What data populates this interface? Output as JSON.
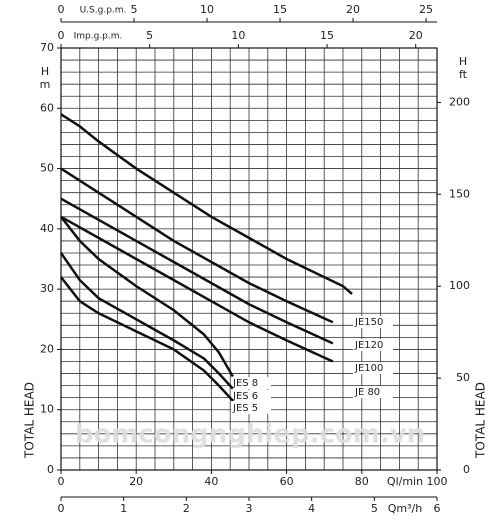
{
  "chart_data": {
    "type": "line",
    "xlim": [
      0,
      100
    ],
    "xticks": [
      0,
      20,
      40,
      60,
      80,
      100
    ],
    "x_label": "Ql/min",
    "x2": {
      "label": "Qm³/h",
      "lim": [
        0,
        6
      ],
      "ticks": [
        0,
        1,
        2,
        3,
        4,
        5,
        6
      ]
    },
    "x_top": {
      "label": "U.S.g.p.m.",
      "lim": [
        0,
        25.75
      ],
      "ticks": [
        0,
        5,
        10,
        15,
        20,
        25
      ]
    },
    "x_top2": {
      "label": "Imp.g.p.m.",
      "lim": [
        0,
        21.2
      ],
      "ticks": [
        0,
        5,
        10,
        15,
        20
      ]
    },
    "ylim": [
      0,
      70
    ],
    "yticks": [
      0,
      10,
      20,
      30,
      40,
      50,
      60,
      70
    ],
    "y_symbol": "H",
    "y_unit": "m",
    "y2lim": [
      0,
      229.6
    ],
    "y2ticks": [
      0,
      50,
      100,
      150,
      200
    ],
    "y2_symbol": "H",
    "y2_unit": "ft",
    "y_title": "TOTAL HEAD",
    "grid": true,
    "minor_grid": {
      "x_step": 5,
      "y_step": 2
    },
    "watermark": "bomcongnghiep.com.vn",
    "series": [
      {
        "name": "JE150",
        "color": "#111111",
        "x": [
          0,
          5,
          10,
          20,
          30,
          40,
          50,
          60,
          70,
          75,
          77.4
        ],
        "values": [
          59,
          57,
          54.5,
          50,
          46,
          42,
          38.5,
          35,
          32,
          30.5,
          29.2
        ]
      },
      {
        "name": "JE120",
        "color": "#111111",
        "x": [
          0,
          10,
          20,
          30,
          40,
          50,
          60,
          72.3
        ],
        "values": [
          50,
          46,
          42,
          38,
          34.5,
          31,
          28,
          24.5
        ]
      },
      {
        "name": "JE100",
        "color": "#111111",
        "x": [
          0,
          10,
          20,
          30,
          40,
          50,
          60,
          72.3
        ],
        "values": [
          45,
          41.5,
          38,
          34.5,
          31,
          27.5,
          24.5,
          21
        ]
      },
      {
        "name": "JE 80",
        "color": "#111111",
        "x": [
          0,
          10,
          20,
          30,
          40,
          50,
          60,
          72.3
        ],
        "values": [
          42,
          38.5,
          35,
          31.5,
          28,
          24.5,
          21.5,
          18
        ]
      },
      {
        "name": "JES 8",
        "color": "#111111",
        "x": [
          0,
          5,
          10,
          20,
          30,
          38,
          42,
          45.7
        ],
        "values": [
          42,
          38,
          35,
          30.5,
          26.5,
          22.5,
          19.5,
          15.5
        ]
      },
      {
        "name": "JES 6",
        "color": "#111111",
        "x": [
          0,
          5,
          10,
          20,
          30,
          38,
          42,
          45.7
        ],
        "values": [
          36,
          31.5,
          28.5,
          25,
          21.5,
          18.5,
          16,
          13.5
        ]
      },
      {
        "name": "JES 5",
        "color": "#111111",
        "x": [
          0,
          5,
          10,
          20,
          30,
          38,
          42,
          45.7
        ],
        "values": [
          32,
          28,
          26,
          23,
          20,
          16.5,
          14,
          11.5
        ]
      }
    ]
  }
}
